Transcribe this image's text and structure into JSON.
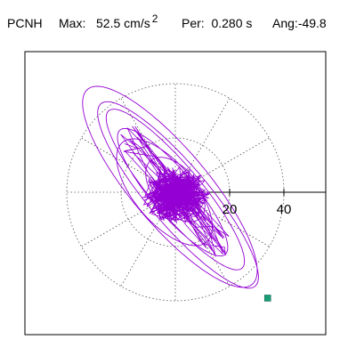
{
  "header": {
    "station": "PCNH",
    "max_label": "Max:",
    "max_value": "52.5",
    "max_unit": "cm/s",
    "max_exp": "2",
    "per_label": "Per:",
    "per_value": "0.280 s",
    "ang_label": "Ang:",
    "ang_value": "-49.8"
  },
  "chart_data": {
    "type": "polar-particle-motion",
    "title": "",
    "rings": [
      20,
      40
    ],
    "ring_labels": [
      "20",
      "40"
    ],
    "max_radius": 40,
    "spoke_step_deg": 30,
    "grid": "dotted",
    "orbit_angle_deg": -49.8,
    "trace_color": "#9400d3",
    "marker_color": "#1b9e77",
    "end_point": [
      34,
      -39
    ],
    "loops": [
      {
        "a": 47,
        "b": 14,
        "cx": -2,
        "cy": 2,
        "phase": 0.0
      },
      {
        "a": 44,
        "b": 11,
        "cx": 1,
        "cy": -1,
        "phase": 0.7
      },
      {
        "a": 38,
        "b": 9,
        "cx": 0,
        "cy": 1,
        "phase": 1.3
      },
      {
        "a": 30,
        "b": 8,
        "cx": -1,
        "cy": 0,
        "phase": 2.0
      },
      {
        "a": 24,
        "b": 11,
        "cx": -4,
        "cy": 0,
        "phase": 2.6
      },
      {
        "a": 14,
        "b": 8,
        "cx": 0,
        "cy": 1,
        "phase": 3.1
      }
    ]
  }
}
